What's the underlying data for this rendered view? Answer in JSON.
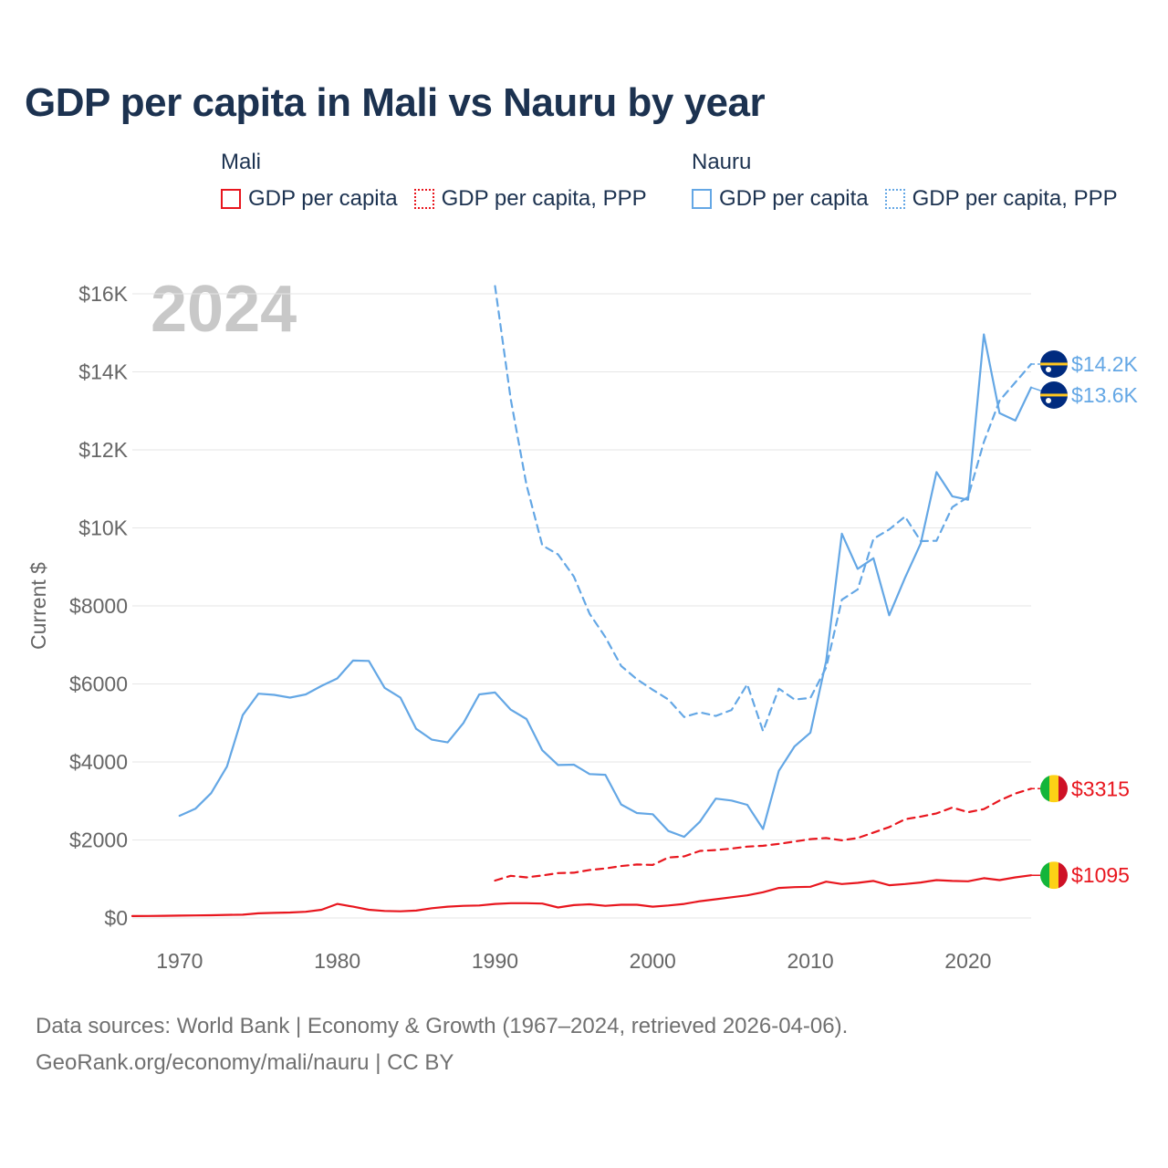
{
  "title": "GDP per capita in Mali vs Nauru by year",
  "legend": {
    "groups": [
      {
        "name": "Mali",
        "items": [
          "GDP per capita",
          "GDP per capita, PPP"
        ]
      },
      {
        "name": "Nauru",
        "items": [
          "GDP per capita",
          "GDP per capita, PPP"
        ]
      }
    ]
  },
  "colors": {
    "mali": "#e8161e",
    "nauru": "#64a7e5",
    "grid": "#e6e6e6",
    "axis_text": "#666666",
    "year_watermark": "#c8c8c8"
  },
  "sources": {
    "line1": "Data sources: World Bank | Economy & Growth (1967–2024, retrieved 2026-04-06).",
    "line2": "GeoRank.org/economy/mali/nauru | CC BY"
  },
  "chart_data": {
    "type": "line",
    "title": "GDP per capita in Mali vs Nauru by year",
    "ylabel": "Current $",
    "xlabel": "",
    "year_label": "2024",
    "xlim": [
      1967,
      2024
    ],
    "ylim": [
      0,
      16000
    ],
    "grid": true,
    "x_ticks": [
      1970,
      1980,
      1990,
      2000,
      2010,
      2020
    ],
    "y_ticks": [
      {
        "value": 0,
        "label": "$0"
      },
      {
        "value": 2000,
        "label": "$2000"
      },
      {
        "value": 4000,
        "label": "$4000"
      },
      {
        "value": 6000,
        "label": "$6000"
      },
      {
        "value": 8000,
        "label": "$8000"
      },
      {
        "value": 10000,
        "label": "$10K"
      },
      {
        "value": 12000,
        "label": "$12K"
      },
      {
        "value": 14000,
        "label": "$14K"
      },
      {
        "value": 16000,
        "label": "$16K"
      }
    ],
    "series": [
      {
        "name": "Mali GDP per capita",
        "country": "Mali",
        "style": "solid",
        "color": "#e8161e",
        "end_label": "$1095",
        "x": [
          1967,
          1968,
          1969,
          1970,
          1971,
          1972,
          1973,
          1974,
          1975,
          1976,
          1977,
          1978,
          1979,
          1980,
          1981,
          1982,
          1983,
          1984,
          1985,
          1986,
          1987,
          1988,
          1989,
          1990,
          1991,
          1992,
          1993,
          1994,
          1995,
          1996,
          1997,
          1998,
          1999,
          2000,
          2001,
          2002,
          2003,
          2004,
          2005,
          2006,
          2007,
          2008,
          2009,
          2010,
          2011,
          2012,
          2013,
          2014,
          2015,
          2016,
          2017,
          2018,
          2019,
          2020,
          2021,
          2022,
          2023,
          2024
        ],
        "values": [
          50,
          52,
          55,
          60,
          65,
          70,
          80,
          85,
          120,
          130,
          140,
          160,
          210,
          360,
          290,
          210,
          180,
          170,
          190,
          250,
          290,
          310,
          320,
          360,
          380,
          380,
          370,
          270,
          330,
          350,
          310,
          340,
          340,
          290,
          320,
          360,
          430,
          480,
          530,
          580,
          660,
          770,
          790,
          800,
          930,
          870,
          900,
          950,
          840,
          870,
          910,
          970,
          950,
          940,
          1020,
          970,
          1040,
          1095
        ]
      },
      {
        "name": "Mali GDP per capita, PPP",
        "country": "Mali",
        "style": "dashed",
        "color": "#e8161e",
        "end_label": "$3315",
        "x": [
          1990,
          1991,
          1992,
          1993,
          1994,
          1995,
          1996,
          1997,
          1998,
          1999,
          2000,
          2001,
          2002,
          2003,
          2004,
          2005,
          2006,
          2007,
          2008,
          2009,
          2010,
          2011,
          2012,
          2013,
          2014,
          2015,
          2016,
          2017,
          2018,
          2019,
          2020,
          2021,
          2022,
          2023,
          2024
        ],
        "values": [
          960,
          1080,
          1040,
          1090,
          1150,
          1160,
          1230,
          1270,
          1330,
          1370,
          1360,
          1550,
          1580,
          1720,
          1740,
          1780,
          1830,
          1850,
          1900,
          1960,
          2020,
          2050,
          1990,
          2050,
          2190,
          2330,
          2530,
          2600,
          2680,
          2830,
          2710,
          2790,
          3010,
          3190,
          3315
        ]
      },
      {
        "name": "Nauru GDP per capita",
        "country": "Nauru",
        "style": "solid",
        "color": "#64a7e5",
        "end_label": "$13.6K",
        "x": [
          1970,
          1971,
          1972,
          1973,
          1974,
          1975,
          1976,
          1977,
          1978,
          1979,
          1980,
          1981,
          1982,
          1983,
          1984,
          1985,
          1986,
          1987,
          1988,
          1989,
          1990,
          1991,
          1992,
          1993,
          1994,
          1995,
          1996,
          1997,
          1998,
          1999,
          2000,
          2001,
          2002,
          2003,
          2004,
          2005,
          2006,
          2007,
          2008,
          2009,
          2010,
          2011,
          2012,
          2013,
          2014,
          2015,
          2016,
          2017,
          2018,
          2019,
          2020,
          2021,
          2022,
          2023,
          2024
        ],
        "values": [
          2620,
          2800,
          3200,
          3880,
          5200,
          5750,
          5720,
          5650,
          5730,
          5950,
          6140,
          6600,
          6590,
          5900,
          5650,
          4850,
          4570,
          4500,
          5000,
          5730,
          5780,
          5340,
          5100,
          4300,
          3920,
          3930,
          3690,
          3670,
          2910,
          2690,
          2660,
          2230,
          2080,
          2470,
          3060,
          3010,
          2900,
          2280,
          3770,
          4400,
          4750,
          6590,
          9850,
          8950,
          9220,
          7760,
          8720,
          9600,
          11430,
          10810,
          10720,
          14960,
          12940,
          12750,
          13600
        ]
      },
      {
        "name": "Nauru GDP per capita, PPP",
        "country": "Nauru",
        "style": "dashed",
        "color": "#64a7e5",
        "end_label": "$14.2K",
        "x": [
          1990,
          1991,
          1992,
          1993,
          1994,
          1995,
          1996,
          1997,
          1998,
          1999,
          2000,
          2001,
          2002,
          2003,
          2004,
          2005,
          2006,
          2007,
          2008,
          2009,
          2010,
          2011,
          2012,
          2013,
          2014,
          2015,
          2016,
          2017,
          2018,
          2019,
          2020,
          2021,
          2022,
          2023,
          2024
        ],
        "values": [
          16200,
          13300,
          11100,
          9550,
          9320,
          8750,
          7800,
          7200,
          6460,
          6120,
          5850,
          5600,
          5150,
          5270,
          5180,
          5330,
          5990,
          4790,
          5880,
          5600,
          5640,
          6420,
          8160,
          8420,
          9720,
          9960,
          10290,
          9660,
          9670,
          10530,
          10790,
          12200,
          13260,
          13730,
          14200
        ]
      }
    ]
  }
}
